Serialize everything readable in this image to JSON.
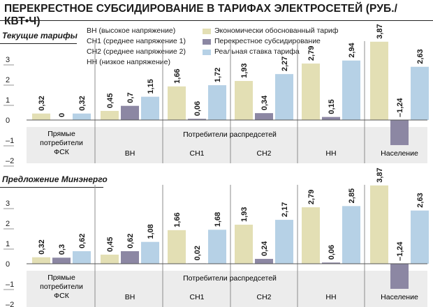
{
  "title": "ПЕРЕКРЕСТНОЕ СУБСИДИРОВАНИЕ В ТАРИФАХ ЭЛЕКТРОСЕТЕЙ (РУБ./КВТ•Ч)",
  "abbreviations": [
    "ВН (высокое напряжение)",
    "СН1 (среднее напряжение 1)",
    "СН2 (среднее напряжение 2)",
    "НН (низкое напряжение)"
  ],
  "legend": [
    {
      "label": "Экономически обоснованный тариф",
      "color": "#e3dfb4"
    },
    {
      "label": "Перекрестное субсидирование",
      "color": "#8c87a3"
    },
    {
      "label": "Реальная ставка тарифа",
      "color": "#b6d1e6"
    }
  ],
  "colors": {
    "separator": "#8d8d8d",
    "row_shade": "#ececec",
    "text": "#1a1a1a"
  },
  "chart_data": [
    {
      "type": "bar",
      "title": "Текущие тарифы",
      "categories": [
        "Прямые потребители ФСК",
        "ВН",
        "СН1",
        "СН2",
        "НН",
        "Население"
      ],
      "group_label": "Потребители распредсетей",
      "series": [
        {
          "name": "Экономически обоснованный тариф",
          "values": [
            0.32,
            0.45,
            1.66,
            1.93,
            2.79,
            3.87
          ],
          "labels": [
            "0,32",
            "0,45",
            "1,66",
            "1,93",
            "2,79",
            "3,87"
          ]
        },
        {
          "name": "Перекрестное субсидирование",
          "values": [
            0,
            0.7,
            0.06,
            0.34,
            0.15,
            -1.24
          ],
          "labels": [
            "0",
            "0,7",
            "0,06",
            "0,34",
            "0,15",
            "–1,24"
          ]
        },
        {
          "name": "Реальная ставка тарифа",
          "values": [
            0.32,
            1.15,
            1.72,
            2.27,
            2.94,
            2.63
          ],
          "labels": [
            "0,32",
            "1,15",
            "1,72",
            "2,27",
            "2,94",
            "2,63"
          ]
        }
      ],
      "y_ticks": [
        3,
        2,
        1,
        0,
        -1,
        -2
      ],
      "y_tick_labels": [
        "3",
        "2",
        "1",
        "0",
        "–1",
        "–2"
      ],
      "ylim": [
        -2,
        3.9
      ]
    },
    {
      "type": "bar",
      "title": "Предложение Минэнерго",
      "categories": [
        "Прямые потребители ФСК",
        "ВН",
        "СН1",
        "СН2",
        "НН",
        "Население"
      ],
      "group_label": "Потребители распредсетей",
      "series": [
        {
          "name": "Экономически обоснованный тариф",
          "values": [
            0.32,
            0.45,
            1.66,
            1.93,
            2.79,
            3.87
          ],
          "labels": [
            "0,32",
            "0,45",
            "1,66",
            "1,93",
            "2,79",
            "3,87"
          ]
        },
        {
          "name": "Перекрестное субсидирование",
          "values": [
            0.3,
            0.62,
            0.02,
            0.24,
            0.06,
            -1.24
          ],
          "labels": [
            "0,3",
            "0,62",
            "0,02",
            "0,24",
            "0,06",
            "–1,24"
          ]
        },
        {
          "name": "Реальная ставка тарифа",
          "values": [
            0.62,
            1.08,
            1.68,
            2.17,
            2.85,
            2.63
          ],
          "labels": [
            "0,62",
            "1,08",
            "1,68",
            "2,17",
            "2,85",
            "2,63"
          ]
        }
      ],
      "y_ticks": [
        3,
        2,
        1,
        0,
        -1,
        -2
      ],
      "y_tick_labels": [
        "3",
        "2",
        "1",
        "0",
        "–1",
        "–2"
      ],
      "ylim": [
        -2,
        3.9
      ]
    }
  ]
}
